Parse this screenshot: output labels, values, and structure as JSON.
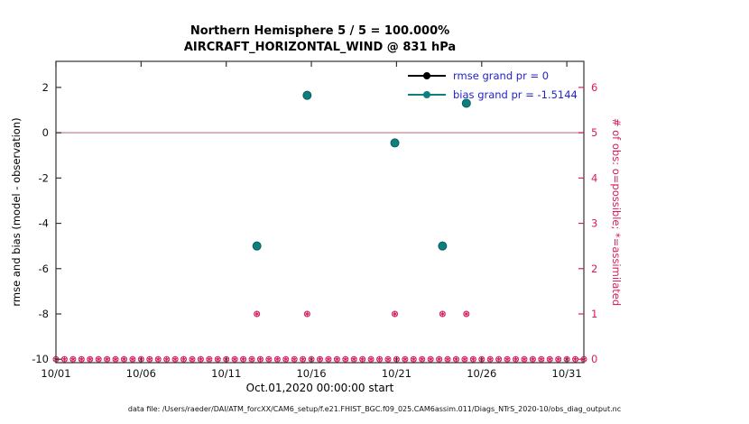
{
  "titles": {
    "line1": "Northern Hemisphere 5 / 5 = 100.000%",
    "line2": "AIRCRAFT_HORIZONTAL_WIND @ 831 hPa"
  },
  "caption": "data file: /Users/raeder/DAI/ATM_forcXX/CAM6_setup/f.e21.FHIST_BGC.f09_025.CAM6assim.011/Diags_NTrS_2020-10/obs_diag_output.nc",
  "colors": {
    "count": "#d81b60",
    "bias": "#0e7f7f",
    "bias_edge": "#09५e5e",
    "rmse": "#000000",
    "zero_line": "#c89aa4",
    "axis": "#333333",
    "tick_text": "#111111"
  },
  "legend": {
    "text_color": "#2222cc",
    "items": [
      {
        "label": "rmse grand pr = 0",
        "color": "#000000"
      },
      {
        "label": "bias grand pr = -1.5144",
        "color": "#0e7f7f"
      }
    ]
  },
  "chart_data": {
    "type": "scatter",
    "title": "Northern Hemisphere 5 / 5 = 100.000% — AIRCRAFT_HORIZONTAL_WIND @ 831 hPa",
    "x_axis": {
      "label": "Oct.01,2020 00:00:00 start",
      "lim": [
        0,
        31
      ],
      "ticks": [
        {
          "t": 0,
          "label": "10/01"
        },
        {
          "t": 5,
          "label": "10/06"
        },
        {
          "t": 10,
          "label": "10/11"
        },
        {
          "t": 15,
          "label": "10/16"
        },
        {
          "t": 20,
          "label": "10/21"
        },
        {
          "t": 25,
          "label": "10/26"
        },
        {
          "t": 30,
          "label": "10/31"
        }
      ]
    },
    "y_left": {
      "label": "rmse and bias (model - observation)",
      "lim": [
        -10.15,
        3.15
      ],
      "ticks": [
        2,
        0,
        -2,
        -4,
        -6,
        -8,
        -10
      ]
    },
    "y_right": {
      "label": "# of obs: o=possible; *=assimilated",
      "lim": [
        -0.075,
        6.575
      ],
      "ticks": [
        6,
        5,
        4,
        3,
        2,
        1,
        0
      ]
    },
    "zero_line": 0,
    "series": [
      {
        "name": "rmse grand pr = 0",
        "grand_value": 0,
        "color": "#000000",
        "points": []
      },
      {
        "name": "bias grand pr = -1.5144",
        "grand_value": -1.5144,
        "color": "#0e7f7f",
        "edge": "#095e5e",
        "points": [
          {
            "t": 11.8,
            "v": -5.0
          },
          {
            "t": 14.75,
            "v": 1.65
          },
          {
            "t": 19.9,
            "v": -0.45
          },
          {
            "t": 22.7,
            "v": -5.0
          },
          {
            "t": 24.1,
            "v": 1.3
          }
        ]
      }
    ],
    "obs_counts": {
      "description": "o=possible, *=assimilated, plotted on right axis",
      "time_start": 0,
      "time_end": 31,
      "time_step": 0.5,
      "default_count": 0,
      "nonzero": [
        {
          "t": 11.8,
          "count": 1
        },
        {
          "t": 14.75,
          "count": 1
        },
        {
          "t": 19.9,
          "count": 1
        },
        {
          "t": 22.7,
          "count": 1
        },
        {
          "t": 24.1,
          "count": 1
        }
      ]
    }
  }
}
